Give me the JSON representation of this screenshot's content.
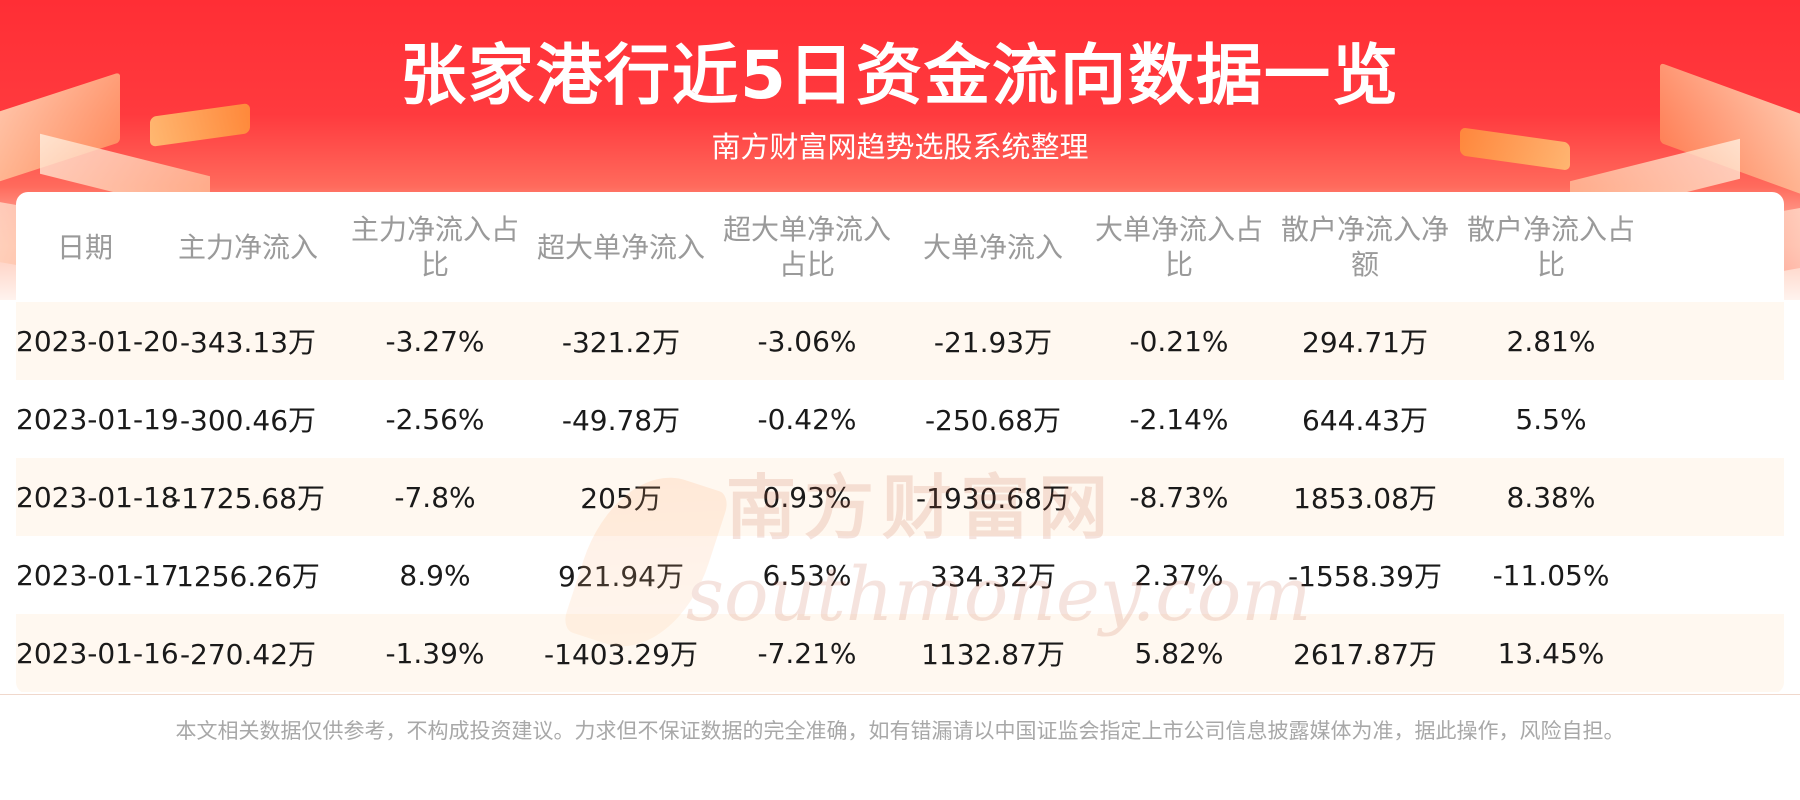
{
  "header": {
    "title": "张家港行近5日资金流向数据一览",
    "subtitle": "南方财富网趋势选股系统整理"
  },
  "watermark": {
    "cn": "南方财富网",
    "en": "southmoney.com"
  },
  "table": {
    "columns": [
      "日期",
      "主力净流入",
      "主力净流入占比",
      "超大单净流入",
      "超大单净流入占比",
      "大单净流入",
      "大单净流入占比",
      "散户净流入净额",
      "散户净流入占比"
    ],
    "rows": [
      [
        "2023-01-20",
        "-343.13万",
        "-3.27%",
        "-321.2万",
        "-3.06%",
        "-21.93万",
        "-0.21%",
        "294.71万",
        "2.81%"
      ],
      [
        "2023-01-19",
        "-300.46万",
        "-2.56%",
        "-49.78万",
        "-0.42%",
        "-250.68万",
        "-2.14%",
        "644.43万",
        "5.5%"
      ],
      [
        "2023-01-18",
        "-1725.68万",
        "-7.8%",
        "205万",
        "0.93%",
        "-1930.68万",
        "-8.73%",
        "1853.08万",
        "8.38%"
      ],
      [
        "2023-01-17",
        "1256.26万",
        "8.9%",
        "921.94万",
        "6.53%",
        "334.32万",
        "2.37%",
        "-1558.39万",
        "-11.05%"
      ],
      [
        "2023-01-16",
        "-270.42万",
        "-1.39%",
        "-1403.29万",
        "-7.21%",
        "1132.87万",
        "5.82%",
        "2617.87万",
        "13.45%"
      ]
    ]
  },
  "footer": {
    "disclaimer": "本文相关数据仅供参考，不构成投资建议。力求但不保证数据的完全准确，如有错漏请以中国证监会指定上市公司信息披露媒体为准，据此操作，风险自担。"
  },
  "colors": {
    "banner_red": "#ff2e35",
    "alt_row": "#fff8f0",
    "header_text": "#9a9a9a",
    "disclaimer_text": "#a8a8a8"
  }
}
